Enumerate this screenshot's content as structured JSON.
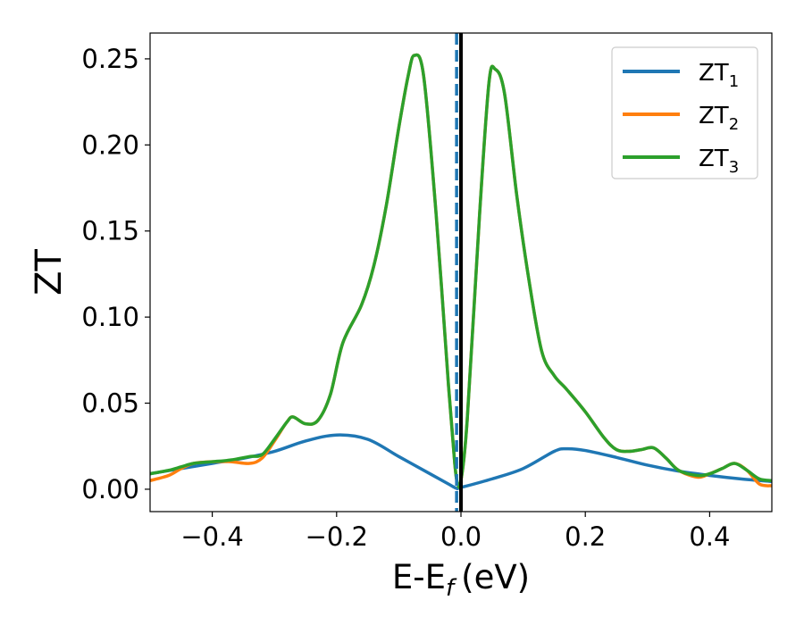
{
  "chart_data": {
    "type": "line",
    "xlabel": "E-E",
    "xlabel_sub": "f",
    "xlabel_unit": "(eV)",
    "ylabel": "ZT",
    "xlim": [
      -0.5,
      0.5
    ],
    "ylim": [
      -0.013,
      0.265
    ],
    "xticks": [
      -0.4,
      -0.2,
      0.0,
      0.2,
      0.4
    ],
    "xtick_labels": [
      "−0.4",
      "−0.2",
      "0.0",
      "0.2",
      "0.4"
    ],
    "yticks": [
      0.0,
      0.05,
      0.1,
      0.15,
      0.2,
      0.25
    ],
    "ytick_labels": [
      "0.00",
      "0.05",
      "0.10",
      "0.15",
      "0.20",
      "0.25"
    ],
    "grid": false,
    "legend_position": "top-right",
    "vlines": [
      {
        "x": 0.0,
        "style": "solid",
        "color": "#000000"
      },
      {
        "x": -0.007,
        "style": "dashed",
        "color": "#1f77b4"
      }
    ],
    "series": [
      {
        "name": "ZT",
        "subscript": "1",
        "color": "#1f77b4",
        "x": [
          -0.5,
          -0.45,
          -0.4,
          -0.35,
          -0.3,
          -0.25,
          -0.2,
          -0.15,
          -0.1,
          -0.05,
          -0.02,
          -0.007,
          0.0,
          0.05,
          0.1,
          0.15,
          0.17,
          0.2,
          0.25,
          0.3,
          0.35,
          0.4,
          0.45,
          0.5
        ],
        "y": [
          0.009,
          0.012,
          0.015,
          0.018,
          0.022,
          0.028,
          0.0315,
          0.029,
          0.019,
          0.009,
          0.003,
          0.0005,
          0.001,
          0.006,
          0.012,
          0.022,
          0.0235,
          0.0225,
          0.0185,
          0.014,
          0.0105,
          0.008,
          0.006,
          0.0045
        ]
      },
      {
        "name": "ZT",
        "subscript": "2",
        "color": "#ff7f0e",
        "x": [
          -0.5,
          -0.47,
          -0.45,
          -0.43,
          -0.4,
          -0.37,
          -0.34,
          -0.32,
          -0.3,
          -0.28,
          -0.27,
          -0.25,
          -0.23,
          -0.21,
          -0.19,
          -0.16,
          -0.14,
          -0.12,
          -0.1,
          -0.085,
          -0.075,
          -0.06,
          -0.04,
          -0.02,
          -0.01,
          -0.005,
          0.0,
          0.01,
          0.03,
          0.045,
          0.055,
          0.07,
          0.09,
          0.11,
          0.13,
          0.15,
          0.17,
          0.2,
          0.23,
          0.25,
          0.27,
          0.29,
          0.31,
          0.33,
          0.35,
          0.38,
          0.4,
          0.42,
          0.44,
          0.46,
          0.48,
          0.5
        ],
        "y": [
          0.005,
          0.008,
          0.012,
          0.015,
          0.016,
          0.016,
          0.015,
          0.018,
          0.028,
          0.039,
          0.042,
          0.038,
          0.04,
          0.055,
          0.085,
          0.107,
          0.13,
          0.165,
          0.21,
          0.24,
          0.252,
          0.24,
          0.16,
          0.06,
          0.015,
          0.003,
          0.005,
          0.04,
          0.16,
          0.236,
          0.244,
          0.23,
          0.17,
          0.12,
          0.08,
          0.066,
          0.058,
          0.045,
          0.03,
          0.023,
          0.022,
          0.023,
          0.024,
          0.018,
          0.011,
          0.007,
          0.009,
          0.012,
          0.015,
          0.011,
          0.003,
          0.002
        ]
      },
      {
        "name": "ZT",
        "subscript": "3",
        "color": "#2ca02c",
        "x": [
          -0.5,
          -0.47,
          -0.45,
          -0.43,
          -0.4,
          -0.37,
          -0.34,
          -0.32,
          -0.3,
          -0.28,
          -0.27,
          -0.25,
          -0.23,
          -0.21,
          -0.19,
          -0.16,
          -0.14,
          -0.12,
          -0.1,
          -0.085,
          -0.075,
          -0.06,
          -0.04,
          -0.02,
          -0.01,
          -0.005,
          0.0,
          0.01,
          0.03,
          0.045,
          0.055,
          0.07,
          0.09,
          0.11,
          0.13,
          0.15,
          0.17,
          0.2,
          0.23,
          0.25,
          0.27,
          0.29,
          0.31,
          0.33,
          0.35,
          0.38,
          0.4,
          0.42,
          0.44,
          0.46,
          0.48,
          0.5
        ],
        "y": [
          0.009,
          0.011,
          0.013,
          0.015,
          0.016,
          0.017,
          0.019,
          0.02,
          0.029,
          0.039,
          0.042,
          0.038,
          0.04,
          0.055,
          0.085,
          0.107,
          0.13,
          0.165,
          0.21,
          0.24,
          0.252,
          0.24,
          0.16,
          0.06,
          0.015,
          0.003,
          0.005,
          0.04,
          0.16,
          0.236,
          0.244,
          0.23,
          0.17,
          0.12,
          0.08,
          0.066,
          0.058,
          0.045,
          0.03,
          0.023,
          0.022,
          0.023,
          0.024,
          0.018,
          0.011,
          0.008,
          0.009,
          0.012,
          0.015,
          0.011,
          0.006,
          0.005
        ]
      }
    ]
  }
}
